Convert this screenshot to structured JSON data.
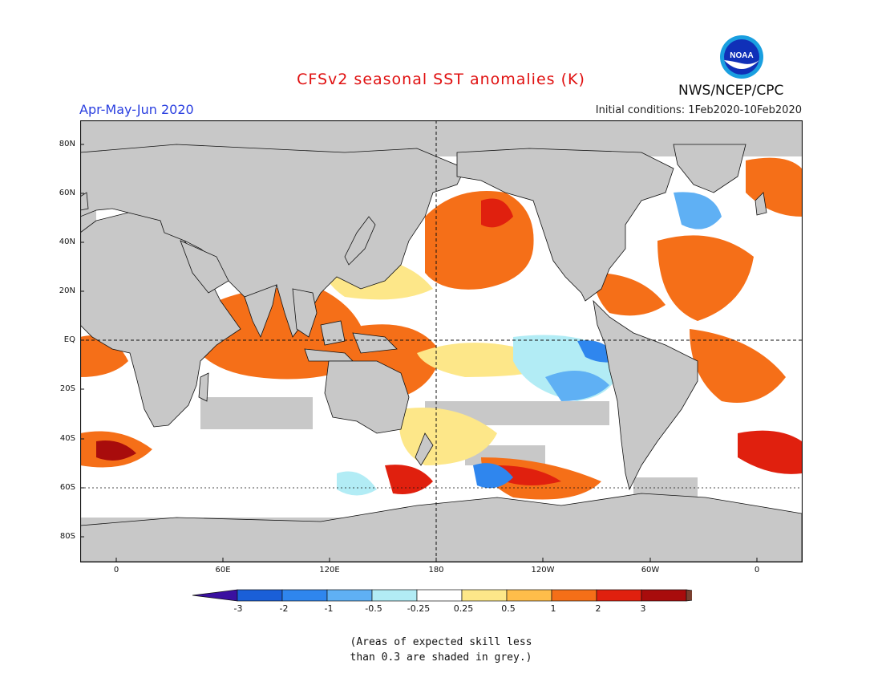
{
  "header": {
    "title": "CFSv2 seasonal SST anomalies (K)",
    "period": "Apr-May-Jun 2020",
    "initial_conditions": "Initial conditions: 1Feb2020-10Feb2020",
    "agency": "NWS/NCEP/CPC",
    "logo_text": "NOAA"
  },
  "map": {
    "lat_labels": [
      "80N",
      "60N",
      "40N",
      "20N",
      "EQ",
      "20S",
      "40S",
      "60S",
      "80S"
    ],
    "lon_labels": [
      "0",
      "60E",
      "120E",
      "180",
      "120W",
      "60W",
      "0"
    ],
    "land_color": "#c8c8c8"
  },
  "colorbar": {
    "labels": [
      "-3",
      "-2",
      "-1",
      "-0.5",
      "-0.25",
      "0.25",
      "0.5",
      "1",
      "2",
      "3"
    ],
    "colors": [
      "#3a10a0",
      "#1a5fd8",
      "#2f86ee",
      "#5fb0f4",
      "#b2ecf5",
      "#ffffff",
      "#fde789",
      "#ffbd4a",
      "#f56f18",
      "#e0200e",
      "#a80c0c",
      "#7a4030"
    ]
  },
  "footnote": {
    "line1": "(Areas of expected skill less",
    "line2": "than 0.3 are shaded in grey.)"
  }
}
